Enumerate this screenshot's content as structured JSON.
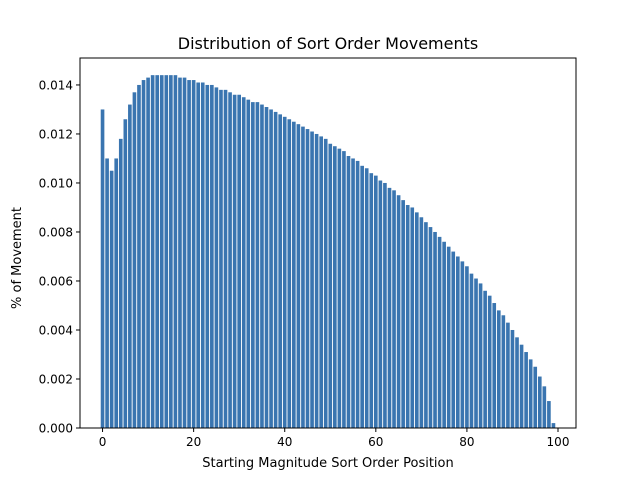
{
  "chart_data": {
    "type": "bar",
    "title": "Distribution of Sort Order Movements",
    "xlabel": "Starting Magnitude Sort Order Position",
    "ylabel": "% of Movement",
    "xlim": [
      -4.95,
      103.95
    ],
    "ylim": [
      0.0,
      0.0151
    ],
    "xticks": [
      0,
      20,
      40,
      60,
      80,
      100
    ],
    "xtick_labels": [
      "0",
      "20",
      "40",
      "60",
      "80",
      "100"
    ],
    "yticks": [
      0.0,
      0.002,
      0.004,
      0.006,
      0.008,
      0.01,
      0.012,
      0.014
    ],
    "ytick_labels": [
      "0.000",
      "0.002",
      "0.004",
      "0.006",
      "0.008",
      "0.010",
      "0.012",
      "0.014"
    ],
    "grid": false,
    "legend": "none",
    "bar_color": "#3a75b0",
    "x": [
      0,
      1,
      2,
      3,
      4,
      5,
      6,
      7,
      8,
      9,
      10,
      11,
      12,
      13,
      14,
      15,
      16,
      17,
      18,
      19,
      20,
      21,
      22,
      23,
      24,
      25,
      26,
      27,
      28,
      29,
      30,
      31,
      32,
      33,
      34,
      35,
      36,
      37,
      38,
      39,
      40,
      41,
      42,
      43,
      44,
      45,
      46,
      47,
      48,
      49,
      50,
      51,
      52,
      53,
      54,
      55,
      56,
      57,
      58,
      59,
      60,
      61,
      62,
      63,
      64,
      65,
      66,
      67,
      68,
      69,
      70,
      71,
      72,
      73,
      74,
      75,
      76,
      77,
      78,
      79,
      80,
      81,
      82,
      83,
      84,
      85,
      86,
      87,
      88,
      89,
      90,
      91,
      92,
      93,
      94,
      95,
      96,
      97,
      98,
      99
    ],
    "values": [
      0.013,
      0.011,
      0.0105,
      0.011,
      0.0118,
      0.0126,
      0.0132,
      0.0137,
      0.014,
      0.0142,
      0.0143,
      0.0144,
      0.0144,
      0.0144,
      0.0144,
      0.0144,
      0.0144,
      0.0143,
      0.0143,
      0.0142,
      0.0142,
      0.0141,
      0.0141,
      0.014,
      0.014,
      0.0139,
      0.0138,
      0.0138,
      0.0137,
      0.0136,
      0.0136,
      0.0135,
      0.0134,
      0.0133,
      0.0133,
      0.0132,
      0.0131,
      0.013,
      0.0129,
      0.0128,
      0.0127,
      0.0126,
      0.0125,
      0.0124,
      0.0123,
      0.0122,
      0.0121,
      0.012,
      0.0119,
      0.0118,
      0.0116,
      0.0115,
      0.0114,
      0.0113,
      0.0111,
      0.011,
      0.0109,
      0.0107,
      0.0106,
      0.0104,
      0.0103,
      0.0101,
      0.01,
      0.0098,
      0.0097,
      0.0095,
      0.0093,
      0.0091,
      0.009,
      0.0088,
      0.0086,
      0.0084,
      0.0082,
      0.008,
      0.0078,
      0.0076,
      0.0074,
      0.0072,
      0.007,
      0.0068,
      0.0066,
      0.0063,
      0.0061,
      0.0059,
      0.0056,
      0.0054,
      0.0051,
      0.0048,
      0.0046,
      0.0043,
      0.004,
      0.0037,
      0.0034,
      0.0031,
      0.0028,
      0.0025,
      0.0021,
      0.0017,
      0.0011,
      0.0002
    ]
  }
}
